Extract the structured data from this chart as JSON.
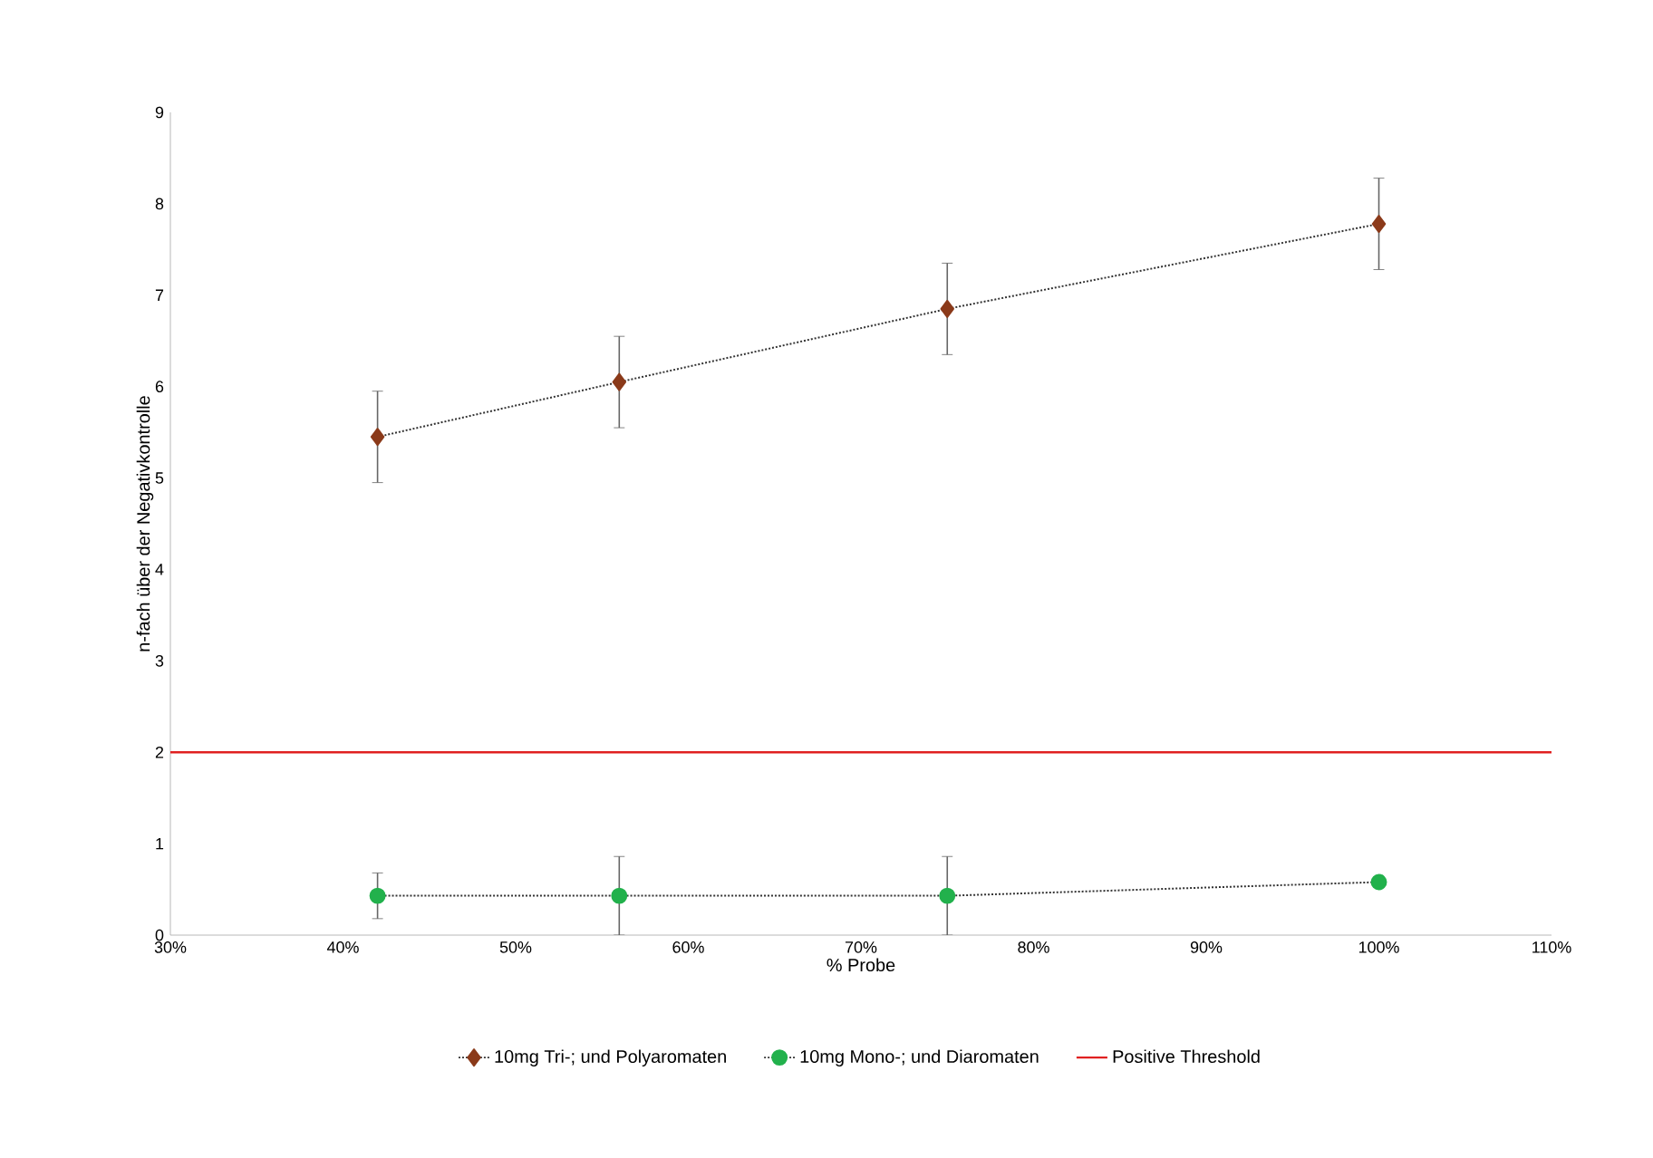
{
  "chart_data": {
    "type": "line",
    "xlabel": "% Probe",
    "ylabel": "n-fach über der Negativkontrolle",
    "xlim": [
      30,
      110
    ],
    "ylim": [
      0,
      9
    ],
    "xticks": [
      {
        "value": 30,
        "label": "30%"
      },
      {
        "value": 40,
        "label": "40%"
      },
      {
        "value": 50,
        "label": "50%"
      },
      {
        "value": 60,
        "label": "60%"
      },
      {
        "value": 70,
        "label": "70%"
      },
      {
        "value": 80,
        "label": "80%"
      },
      {
        "value": 90,
        "label": "90%"
      },
      {
        "value": 100,
        "label": "100%"
      },
      {
        "value": 110,
        "label": "110%"
      }
    ],
    "yticks": [
      0,
      1,
      2,
      3,
      4,
      5,
      6,
      7,
      8,
      9
    ],
    "x": [
      42,
      56,
      75,
      100
    ],
    "series": [
      {
        "name": "10mg Tri-; und Polyaromaten",
        "color": "#8b3a1a",
        "marker": "diamond",
        "line_style": "dotted",
        "values": [
          5.45,
          6.05,
          6.85,
          7.78
        ],
        "errors": [
          0.5,
          0.5,
          0.5,
          0.5
        ]
      },
      {
        "name": "10mg Mono-; und Diaromaten",
        "color": "#22b14c",
        "marker": "circle",
        "line_style": "dotted",
        "values": [
          0.43,
          0.43,
          0.43,
          0.58
        ],
        "errors": [
          0.25,
          0.43,
          0.43,
          null
        ]
      }
    ],
    "ref_lines": [
      {
        "axis": "y",
        "value": 2,
        "label": "Positive Threshold",
        "color": "#e02020",
        "line_style": "solid"
      }
    ],
    "legend": "bottom",
    "grid": false
  }
}
